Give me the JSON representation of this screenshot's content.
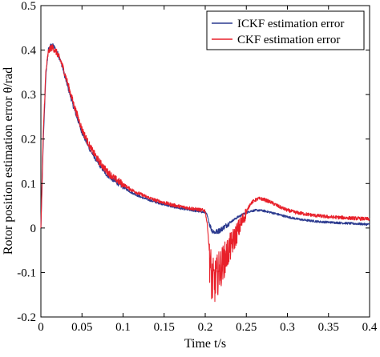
{
  "chart_data": {
    "type": "line",
    "xlabel": "Time t/s",
    "ylabel": "Rotor position estimation error θ/rad",
    "xlim": [
      0,
      0.4
    ],
    "ylim": [
      -0.2,
      0.5
    ],
    "xticks": [
      0,
      0.05,
      0.1,
      0.15,
      0.2,
      0.25,
      0.3,
      0.35,
      0.4
    ],
    "xtick_labels": [
      "0",
      "0.05",
      "0.1",
      "0.15",
      "0.2",
      "0.25",
      "0.3",
      "0.35",
      "0.4"
    ],
    "yticks": [
      -0.2,
      -0.1,
      0,
      0.1,
      0.2,
      0.3,
      0.4,
      0.5
    ],
    "ytick_labels": [
      "-0.2",
      "-0.1",
      "0",
      "0.1",
      "0.2",
      "0.3",
      "0.4",
      "0.5"
    ],
    "grid": false,
    "legend_position": "top-right",
    "series": [
      {
        "name": "ICKF estimation error",
        "color": "#2b3a8f",
        "points": [
          [
            0,
            0
          ],
          [
            0.003,
            0.2
          ],
          [
            0.006,
            0.34
          ],
          [
            0.009,
            0.4
          ],
          [
            0.012,
            0.41
          ],
          [
            0.015,
            0.41
          ],
          [
            0.02,
            0.395
          ],
          [
            0.025,
            0.37
          ],
          [
            0.03,
            0.335
          ],
          [
            0.04,
            0.27
          ],
          [
            0.05,
            0.215
          ],
          [
            0.06,
            0.175
          ],
          [
            0.07,
            0.145
          ],
          [
            0.08,
            0.12
          ],
          [
            0.09,
            0.105
          ],
          [
            0.1,
            0.092
          ],
          [
            0.11,
            0.08
          ],
          [
            0.12,
            0.071
          ],
          [
            0.13,
            0.064
          ],
          [
            0.14,
            0.058
          ],
          [
            0.15,
            0.053
          ],
          [
            0.16,
            0.048
          ],
          [
            0.17,
            0.044
          ],
          [
            0.18,
            0.041
          ],
          [
            0.19,
            0.038
          ],
          [
            0.2,
            0.035
          ],
          [
            0.202,
            0.03
          ],
          [
            0.205,
            0.01
          ],
          [
            0.208,
            -0.005
          ],
          [
            0.212,
            -0.01
          ],
          [
            0.218,
            -0.005
          ],
          [
            0.225,
            0.005
          ],
          [
            0.232,
            0.015
          ],
          [
            0.24,
            0.025
          ],
          [
            0.248,
            0.033
          ],
          [
            0.255,
            0.038
          ],
          [
            0.262,
            0.04
          ],
          [
            0.27,
            0.039
          ],
          [
            0.28,
            0.035
          ],
          [
            0.29,
            0.03
          ],
          [
            0.3,
            0.025
          ],
          [
            0.31,
            0.021
          ],
          [
            0.32,
            0.018
          ],
          [
            0.33,
            0.016
          ],
          [
            0.34,
            0.014
          ],
          [
            0.35,
            0.013
          ],
          [
            0.36,
            0.012
          ],
          [
            0.37,
            0.011
          ],
          [
            0.38,
            0.01
          ],
          [
            0.39,
            0.009
          ],
          [
            0.4,
            0.008
          ]
        ]
      },
      {
        "name": "CKF estimation error",
        "color": "#e8202a",
        "points": [
          [
            0,
            0
          ],
          [
            0.003,
            0.22
          ],
          [
            0.006,
            0.35
          ],
          [
            0.009,
            0.395
          ],
          [
            0.012,
            0.405
          ],
          [
            0.015,
            0.405
          ],
          [
            0.02,
            0.392
          ],
          [
            0.025,
            0.372
          ],
          [
            0.03,
            0.342
          ],
          [
            0.04,
            0.278
          ],
          [
            0.05,
            0.222
          ],
          [
            0.06,
            0.182
          ],
          [
            0.07,
            0.152
          ],
          [
            0.08,
            0.128
          ],
          [
            0.09,
            0.111
          ],
          [
            0.1,
            0.098
          ],
          [
            0.11,
            0.086
          ],
          [
            0.12,
            0.077
          ],
          [
            0.13,
            0.069
          ],
          [
            0.14,
            0.062
          ],
          [
            0.15,
            0.057
          ],
          [
            0.16,
            0.052
          ],
          [
            0.17,
            0.048
          ],
          [
            0.18,
            0.045
          ],
          [
            0.19,
            0.042
          ],
          [
            0.2,
            0.039
          ],
          [
            0.203,
            0.0
          ],
          [
            0.206,
            -0.08
          ],
          [
            0.208,
            -0.12
          ],
          [
            0.212,
            -0.12
          ],
          [
            0.216,
            -0.1
          ],
          [
            0.22,
            -0.085
          ],
          [
            0.225,
            -0.065
          ],
          [
            0.23,
            -0.045
          ],
          [
            0.235,
            -0.025
          ],
          [
            0.24,
            -0.005
          ],
          [
            0.245,
            0.015
          ],
          [
            0.25,
            0.035
          ],
          [
            0.255,
            0.055
          ],
          [
            0.26,
            0.062
          ],
          [
            0.265,
            0.066
          ],
          [
            0.27,
            0.065
          ],
          [
            0.28,
            0.058
          ],
          [
            0.29,
            0.048
          ],
          [
            0.3,
            0.04
          ],
          [
            0.31,
            0.035
          ],
          [
            0.32,
            0.032
          ],
          [
            0.33,
            0.029
          ],
          [
            0.34,
            0.027
          ],
          [
            0.35,
            0.025
          ],
          [
            0.36,
            0.024
          ],
          [
            0.37,
            0.023
          ],
          [
            0.38,
            0.022
          ],
          [
            0.39,
            0.021
          ],
          [
            0.4,
            0.02
          ]
        ]
      }
    ]
  }
}
